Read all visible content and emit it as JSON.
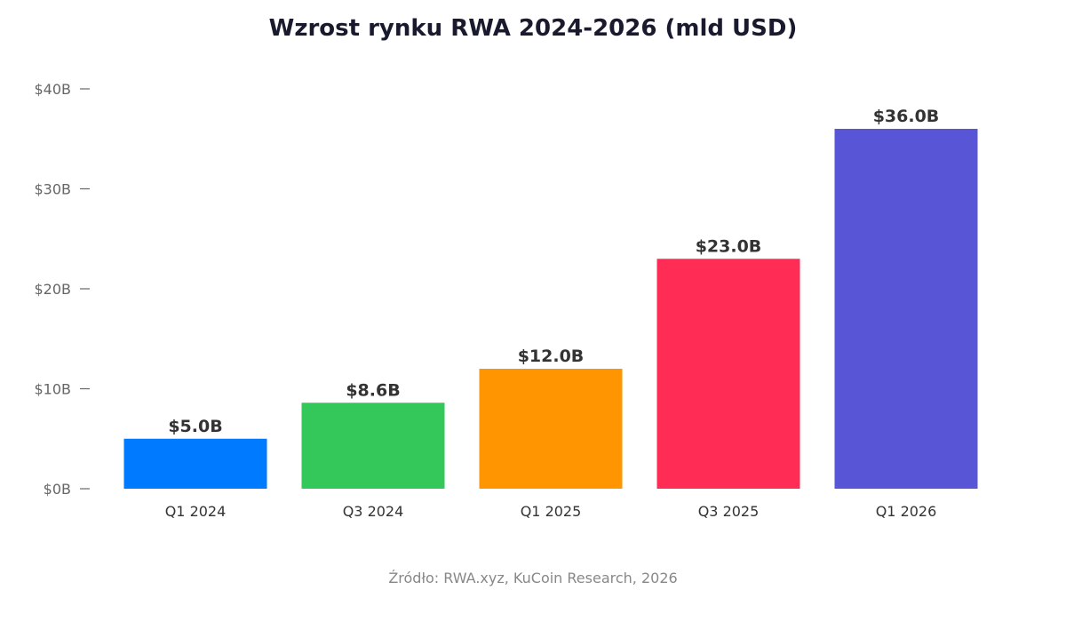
{
  "chart_data": {
    "type": "bar",
    "title": "Wzrost rynku RWA 2024-2026 (mld USD)",
    "categories": [
      "Q1 2024",
      "Q3 2024",
      "Q1 2025",
      "Q3 2025",
      "Q1 2026"
    ],
    "values": [
      5.0,
      8.6,
      12.0,
      23.0,
      36.0
    ],
    "value_labels": [
      "$5.0B",
      "$8.6B",
      "$12.0B",
      "$23.0B",
      "$36.0B"
    ],
    "bar_colors": [
      "#007aff",
      "#34c759",
      "#ff9500",
      "#ff2d55",
      "#5856d6"
    ],
    "xlabel": "",
    "ylabel": "",
    "ylim": [
      0,
      40
    ],
    "y_ticks": [
      0,
      10,
      20,
      30,
      40
    ],
    "y_tick_labels": [
      "$0B",
      "$10B",
      "$20B",
      "$30B",
      "$40B"
    ],
    "grid": false,
    "legend": "none"
  },
  "source_note": "Źródło: RWA.xyz, KuCoin Research, 2026"
}
